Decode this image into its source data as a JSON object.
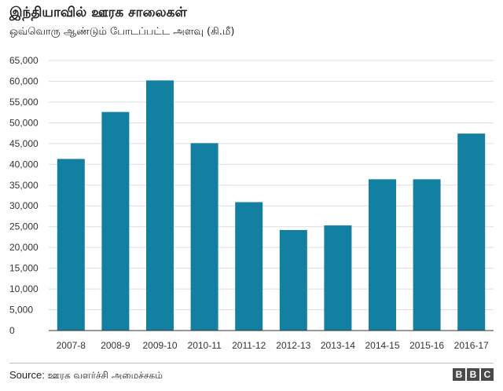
{
  "chart_data": {
    "type": "bar",
    "title": "இந்தியாவில் ஊரக சாலைகள்",
    "subtitle": "ஒவ்வொரு ஆண்டும் போடப்பட்ட அளவு (கி.மீ)",
    "xlabel": "",
    "ylabel": "",
    "categories": [
      "2007-8",
      "2008-9",
      "2009-10",
      "2010-11",
      "2011-12",
      "2012-13",
      "2013-14",
      "2014-15",
      "2015-16",
      "2016-17"
    ],
    "values": [
      41300,
      52600,
      60200,
      45100,
      30900,
      24200,
      25300,
      36400,
      36400,
      47400
    ],
    "ylim": [
      0,
      65000
    ],
    "yticks": [
      0,
      5000,
      10000,
      15000,
      20000,
      25000,
      30000,
      35000,
      40000,
      45000,
      50000,
      55000,
      60000,
      65000
    ],
    "ytick_labels": [
      "0",
      "5,000",
      "10,000",
      "15,000",
      "20,000",
      "25,000",
      "30,000",
      "35,000",
      "40,000",
      "45,000",
      "50,000",
      "55,000",
      "60,000",
      "65,000"
    ],
    "grid": true,
    "bar_color": "#1380A1",
    "grid_color": "#dddddd"
  },
  "footer": {
    "source_label": "Source:",
    "source_text": "ஊரக வளர்ச்சி அமைச்சகம்",
    "logo_letters": [
      "B",
      "B",
      "C"
    ]
  }
}
